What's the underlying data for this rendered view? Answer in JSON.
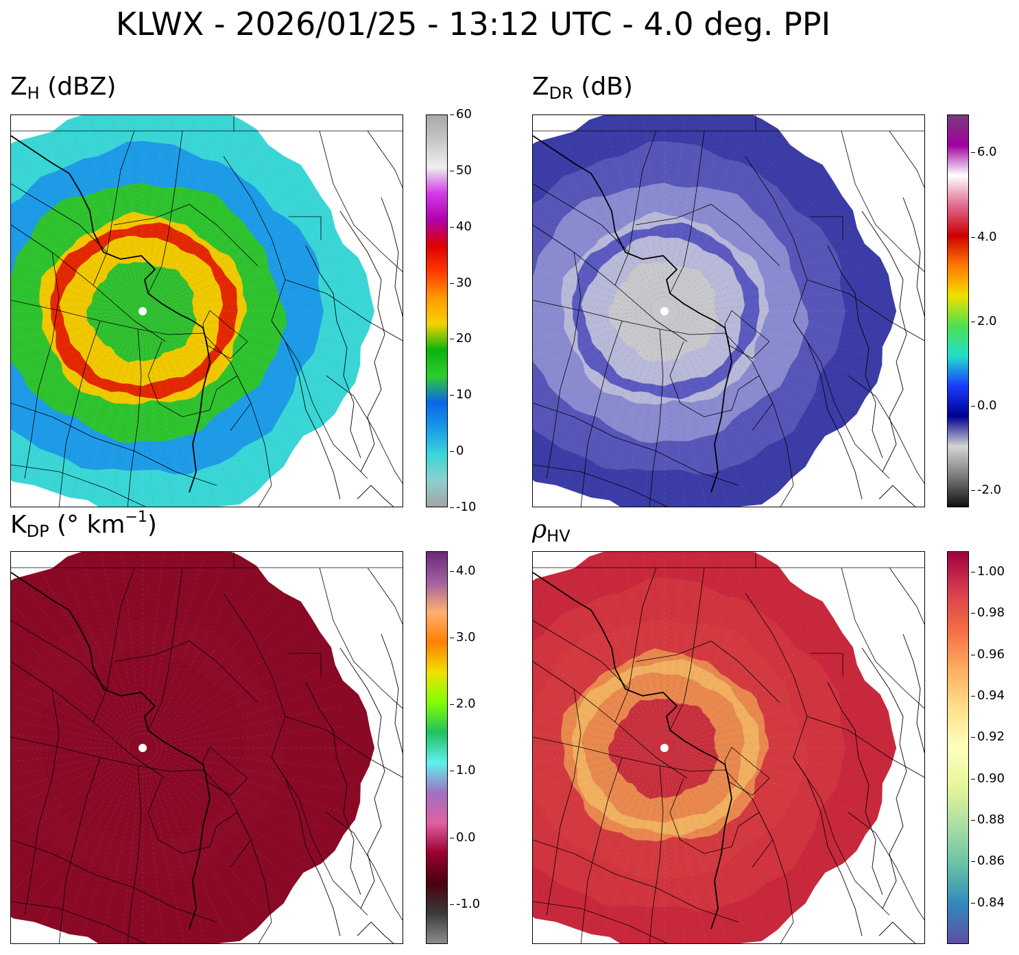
{
  "title": "KLWX - 2026/01/25 - 13:12 UTC - 4.0 deg. PPI",
  "panels": [
    {
      "id": "zh",
      "label": {
        "main": "Z",
        "sub": "H",
        "rest": " (dBZ)",
        "greek": false
      },
      "colorbar": {
        "ticks": [
          "60",
          "50",
          "40",
          "30",
          "20",
          "10",
          "0",
          "-10"
        ],
        "tick_values": [
          60,
          50,
          40,
          30,
          20,
          10,
          0,
          -10
        ],
        "range": [
          -10,
          60
        ],
        "stops": [
          "#a4a4a4",
          "#8ccfcf",
          "#3ad6d6",
          "#1a9ae8",
          "#0a66e8",
          "#2fcc2f",
          "#0bb30b",
          "#f5d200",
          "#ff9a00",
          "#ff3a00",
          "#dc0000",
          "#b000b0",
          "#d23ce8",
          "#eeeeee",
          "#c8c8c8",
          "#a8a8a8"
        ]
      },
      "rings": {
        "outer": "#3ad6d6",
        "mid": "#1e9be6",
        "green": "#2fc22f",
        "yellow": "#f0c800",
        "red": "#e22800",
        "inner": "#2fbf2f"
      }
    },
    {
      "id": "zdr",
      "label": {
        "main": "Z",
        "sub": "DR",
        "rest": " (dB)",
        "greek": false
      },
      "colorbar": {
        "ticks": [
          "6.0",
          "4.0",
          "2.0",
          "0.0",
          "-2.0"
        ],
        "tick_values": [
          6.0,
          4.0,
          2.0,
          0.0,
          -2.0
        ],
        "range": [
          -2.4,
          6.9
        ],
        "stops": [
          "#111111",
          "#7a7a7a",
          "#d4d4d4",
          "#000090",
          "#1a3cff",
          "#22ddcc",
          "#4de050",
          "#f0e000",
          "#ff7a00",
          "#cc0000",
          "#e06a90",
          "#ffffff",
          "#a000a0",
          "#7a3a7a"
        ]
      },
      "rings": {
        "outer": "#3c3ca6",
        "mid": "#5656b8",
        "green": "#8a8ad0",
        "yellow": "#b8b8d8",
        "red": "#5a5ac0",
        "inner": "#c8c8cc"
      }
    },
    {
      "id": "kdp",
      "label": {
        "main": "K",
        "sub": "DP",
        "rest": " (° km",
        "sup": "−1",
        "tail": ")",
        "greek": false
      },
      "colorbar": {
        "ticks": [
          "4.0",
          "3.0",
          "2.0",
          "1.0",
          "0.0",
          "-1.0"
        ],
        "tick_values": [
          4.0,
          3.0,
          2.0,
          1.0,
          0.0,
          -1.0
        ],
        "range": [
          -1.6,
          4.3
        ],
        "stops": [
          "#8c8c8c",
          "#3a3a3a",
          "#4a0010",
          "#9a0030",
          "#e060a0",
          "#a070c0",
          "#60f0f0",
          "#20c060",
          "#80ff00",
          "#f0e000",
          "#ff8000",
          "#ffb070",
          "#a060a0",
          "#6a2a7a"
        ]
      },
      "rings": {
        "outer": "#8a0a26",
        "mid": "#8a0a26",
        "green": "#8c0c28",
        "yellow": "#8a0a26",
        "red": "#8a0a26",
        "inner": "#8a0a26"
      }
    },
    {
      "id": "rhohv",
      "label": {
        "main": "ρ",
        "sub": "HV",
        "rest": "",
        "greek": true
      },
      "colorbar": {
        "ticks": [
          "1.00",
          "0.98",
          "0.96",
          "0.94",
          "0.92",
          "0.90",
          "0.88",
          "0.86",
          "0.84"
        ],
        "tick_values": [
          1.0,
          0.98,
          0.96,
          0.94,
          0.92,
          0.9,
          0.88,
          0.86,
          0.84
        ],
        "range": [
          0.82,
          1.01
        ],
        "stops": [
          "#5e4fa2",
          "#3288bd",
          "#66c2a5",
          "#abdda4",
          "#e6f598",
          "#ffffbf",
          "#fee08b",
          "#fdae61",
          "#f46d43",
          "#d53e4f",
          "#9e0142"
        ]
      },
      "rings": {
        "outer": "#c8283c",
        "mid": "#d0343e",
        "green": "#d23a40",
        "yellow": "#e8884e",
        "red": "#f0b060",
        "inner": "#c8303e"
      }
    }
  ]
}
